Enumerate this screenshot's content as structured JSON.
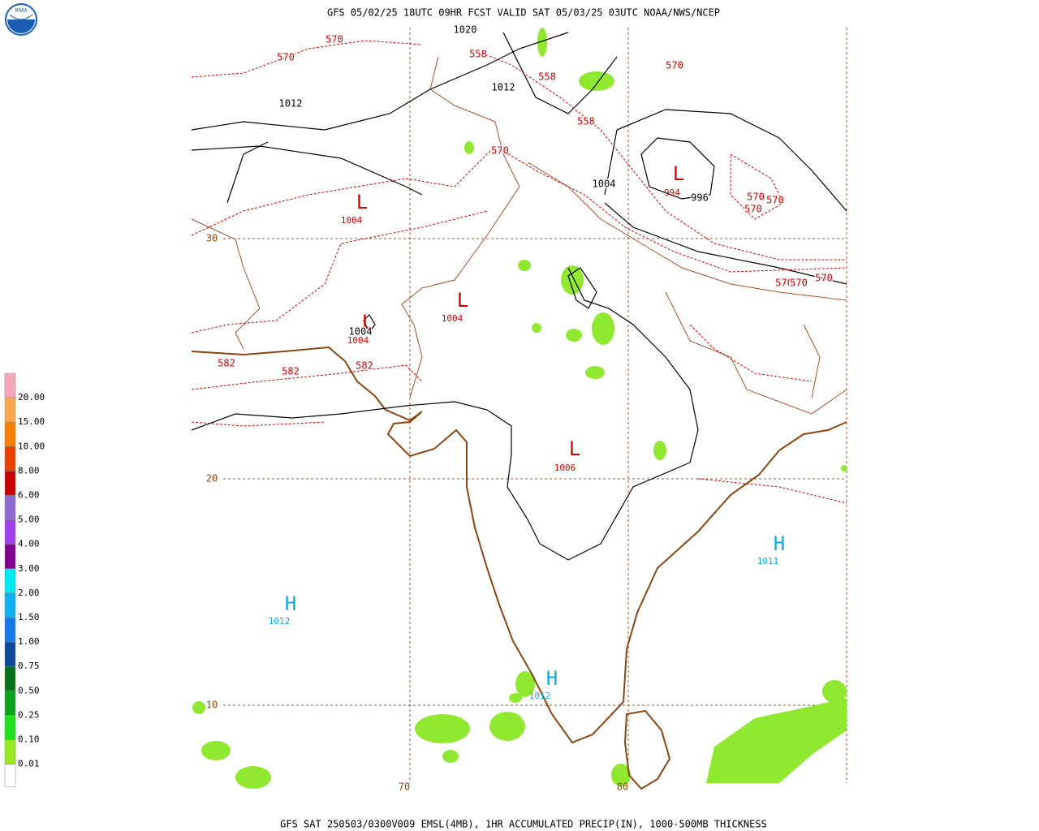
{
  "header": {
    "title": "GFS 05/02/25 18UTC 09HR FCST VALID SAT 05/03/25 03UTC NOAA/NWS/NCEP"
  },
  "footer": {
    "caption": "GFS SAT 250503/0300V009 EMSL(4MB), 1HR ACCUMULATED PRECIP(IN), 1000-500MB THICKNESS"
  },
  "legend": {
    "levels": [
      {
        "label": "20.00",
        "color": "#f6a8b8"
      },
      {
        "label": "15.00",
        "color": "#f8a850"
      },
      {
        "label": "10.00",
        "color": "#f88000"
      },
      {
        "label": "8.00",
        "color": "#e84000"
      },
      {
        "label": "6.00",
        "color": "#c80000"
      },
      {
        "label": "5.00",
        "color": "#8c6cd0"
      },
      {
        "label": "4.00",
        "color": "#a040f0"
      },
      {
        "label": "3.00",
        "color": "#800090"
      },
      {
        "label": "2.00",
        "color": "#00e8f0"
      },
      {
        "label": "1.50",
        "color": "#10b0f0"
      },
      {
        "label": "1.00",
        "color": "#1878e8"
      },
      {
        "label": "0.75",
        "color": "#104898"
      },
      {
        "label": "0.50",
        "color": "#087018"
      },
      {
        "label": "0.25",
        "color": "#10a020"
      },
      {
        "label": "0.10",
        "color": "#20e020"
      },
      {
        "label": "0.01",
        "color": "#98e828"
      }
    ]
  },
  "map": {
    "latitude_labels": [
      "30",
      "20",
      "10"
    ],
    "longitude_labels": [
      "70",
      "80"
    ],
    "lows": [
      {
        "symbol": "L",
        "pressure": "1004"
      },
      {
        "symbol": "L",
        "pressure": "1004"
      },
      {
        "symbol": "L",
        "pressure": "1004"
      },
      {
        "symbol": "L",
        "pressure": "994"
      },
      {
        "symbol": "L",
        "pressure": "1006"
      }
    ],
    "highs": [
      {
        "symbol": "H",
        "pressure": "1012"
      },
      {
        "symbol": "H",
        "pressure": "1011"
      },
      {
        "symbol": "H",
        "pressure": "1012"
      }
    ],
    "isobar_labels": [
      "1020",
      "1012",
      "1012",
      "1004",
      "996",
      "1004"
    ],
    "thickness_labels": [
      "570",
      "570",
      "558",
      "558",
      "558",
      "570",
      "570",
      "570",
      "570",
      "570",
      "570",
      "570",
      "570",
      "582",
      "582",
      "582"
    ]
  }
}
